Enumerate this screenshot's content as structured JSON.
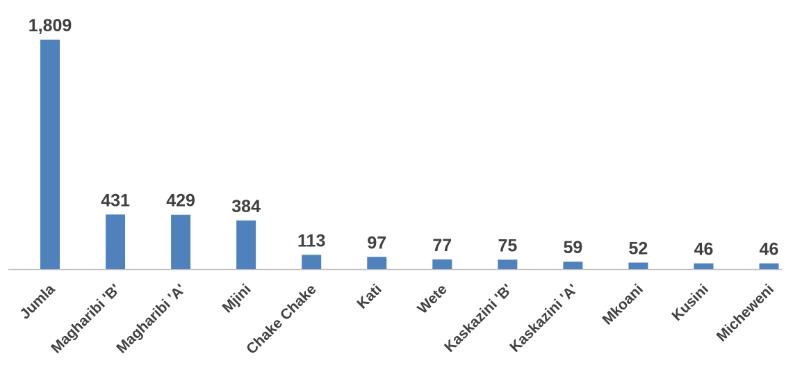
{
  "chart_data": {
    "type": "bar",
    "categories": [
      "Jumla",
      "Magharibi 'B'",
      "Magharibi 'A'",
      "Mjini",
      "Chake Chake",
      "Kati",
      "Wete",
      "Kaskazini 'B'",
      "Kaskazini 'A'",
      "Mkoani",
      "Kusini",
      "Micheweni"
    ],
    "values": [
      1809,
      431,
      429,
      384,
      113,
      97,
      77,
      75,
      59,
      52,
      46,
      46
    ],
    "value_labels": [
      "1,809",
      "431",
      "429",
      "384",
      "113",
      "97",
      "77",
      "75",
      "59",
      "52",
      "46",
      "46"
    ],
    "title": "",
    "xlabel": "",
    "ylabel": "",
    "ylim": [
      0,
      1809
    ],
    "grid": false,
    "legend": "none",
    "bar_color": "#4f81bd"
  }
}
